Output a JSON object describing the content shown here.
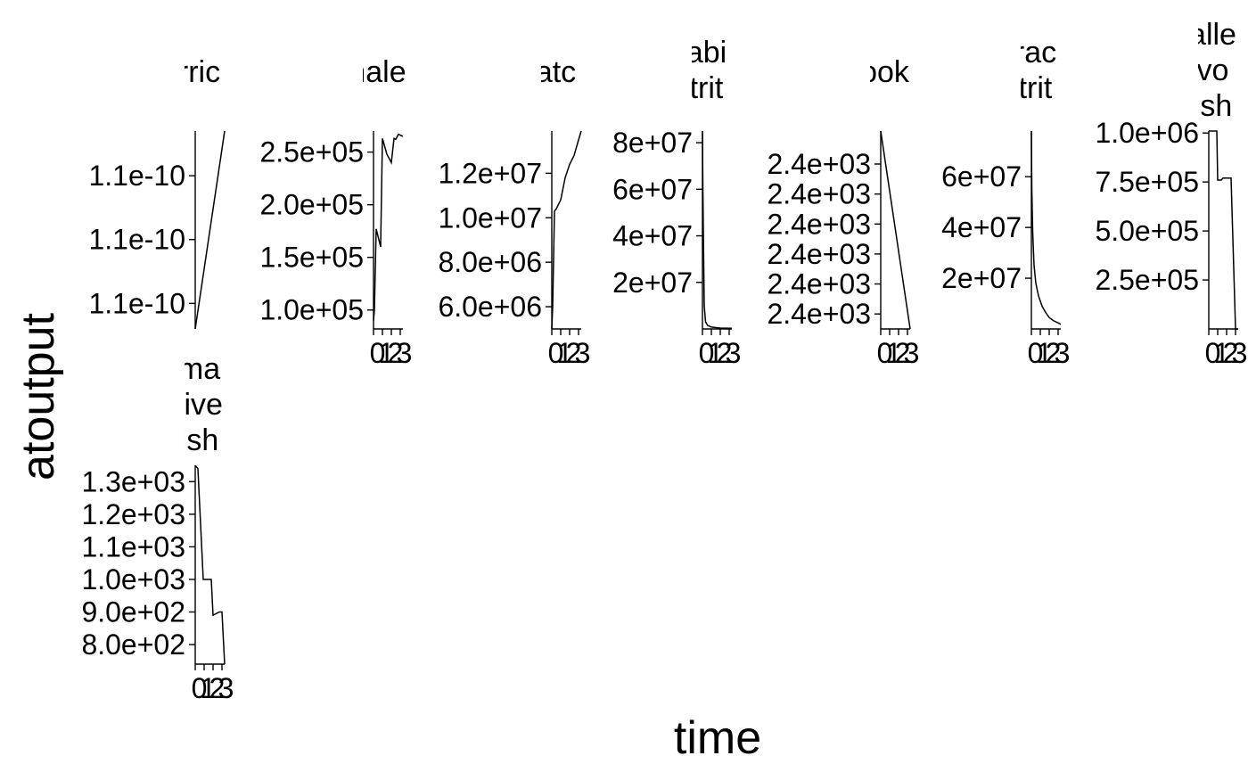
{
  "figure": {
    "xlabel": "time",
    "ylabel": "atoutput"
  },
  "chart_data": [
    {
      "type": "line",
      "title_lines": [
        "rric"
      ],
      "x": [
        0,
        3.3
      ],
      "y": [
        1.098e-10,
        1.1135e-10
      ],
      "ylim": [
        1.098e-10,
        1.1135e-10
      ],
      "yticks": [
        {
          "v": 1.1e-10,
          "label": "1.1e-10"
        },
        {
          "v": 1.105e-10,
          "label": "1.1e-10"
        },
        {
          "v": 1.11e-10,
          "label": "1.1e-10"
        }
      ],
      "xticks": []
    },
    {
      "type": "line",
      "title_lines": [
        "nale"
      ],
      "x": [
        0,
        0.1,
        0.3,
        0.8,
        1.0,
        1.5,
        2.0,
        2.3,
        2.5,
        2.8,
        3.0,
        3.3
      ],
      "y": [
        90000,
        100000,
        177000,
        160000,
        263000,
        248000,
        240000,
        263000,
        262000,
        267000,
        266000,
        265000
      ],
      "ylim": [
        82000,
        270000
      ],
      "yticks": [
        {
          "v": 100000,
          "label": "1.0e+05"
        },
        {
          "v": 150000,
          "label": "1.5e+05"
        },
        {
          "v": 200000,
          "label": "2.0e+05"
        },
        {
          "v": 250000,
          "label": "2.5e+05"
        }
      ],
      "xticks": [
        {
          "v": 0,
          "label": "0"
        },
        {
          "v": 1,
          "label": "1"
        },
        {
          "v": 2,
          "label": "2"
        },
        {
          "v": 3,
          "label": "3"
        }
      ]
    },
    {
      "type": "line",
      "title_lines": [
        "atc"
      ],
      "x": [
        0,
        0.1,
        0.3,
        0.5,
        1.0,
        1.5,
        2.0,
        2.5,
        3.0,
        3.3
      ],
      "y": [
        5000000,
        6000000,
        10300000,
        10400000,
        10800000,
        11800000,
        12400000,
        12800000,
        13500000,
        13900000
      ],
      "ylim": [
        5000000,
        13900000
      ],
      "yticks": [
        {
          "v": 6000000,
          "label": "6.0e+06"
        },
        {
          "v": 8000000,
          "label": "8.0e+06"
        },
        {
          "v": 10000000,
          "label": "1.0e+07"
        },
        {
          "v": 12000000,
          "label": "1.2e+07"
        }
      ],
      "xticks": [
        {
          "v": 0,
          "label": "0"
        },
        {
          "v": 1,
          "label": "1"
        },
        {
          "v": 2,
          "label": "2"
        },
        {
          "v": 3,
          "label": "3"
        }
      ]
    },
    {
      "type": "line",
      "title_lines": [
        "abi",
        "trit"
      ],
      "x": [
        0,
        0.05,
        0.1,
        0.2,
        0.35,
        0.6,
        1.0,
        2.0,
        3.3
      ],
      "y": [
        85000000,
        60000000,
        42000000,
        10000000,
        3000000,
        1500000,
        800000,
        400000,
        300000
      ],
      "ylim": [
        0,
        85000000
      ],
      "yticks": [
        {
          "v": 20000000,
          "label": "2e+07"
        },
        {
          "v": 40000000,
          "label": "4e+07"
        },
        {
          "v": 60000000,
          "label": "6e+07"
        },
        {
          "v": 80000000,
          "label": "8e+07"
        }
      ],
      "xticks": [
        {
          "v": 0,
          "label": "0"
        },
        {
          "v": 1,
          "label": "1"
        },
        {
          "v": 2,
          "label": "2"
        },
        {
          "v": 3,
          "label": "3"
        }
      ]
    },
    {
      "type": "line",
      "title_lines": [
        "ook"
      ],
      "x": [
        0,
        3.3
      ],
      "y": [
        2400.42,
        2399.1
      ],
      "ylim": [
        2399.1,
        2400.42
      ],
      "yticks": [
        {
          "v": 2399.2,
          "label": "2.4e+03"
        },
        {
          "v": 2399.4,
          "label": "2.4e+03"
        },
        {
          "v": 2399.6,
          "label": "2.4e+03"
        },
        {
          "v": 2399.8,
          "label": "2.4e+03"
        },
        {
          "v": 2400.0,
          "label": "2.4e+03"
        },
        {
          "v": 2400.2,
          "label": "2.4e+03"
        }
      ],
      "xticks": [
        {
          "v": 0,
          "label": "0"
        },
        {
          "v": 1,
          "label": "1"
        },
        {
          "v": 2,
          "label": "2"
        },
        {
          "v": 3,
          "label": "3"
        }
      ]
    },
    {
      "type": "line",
      "title_lines": [
        "rac",
        "trit"
      ],
      "x": [
        0,
        0.05,
        0.15,
        0.3,
        0.5,
        0.8,
        1.2,
        1.6,
        2.0,
        2.5,
        3.0,
        3.3
      ],
      "y": [
        78000000,
        55000000,
        38000000,
        25000000,
        18000000,
        13000000,
        9000000,
        6500000,
        4500000,
        3200000,
        2400000,
        1800000
      ],
      "ylim": [
        0,
        78000000
      ],
      "yticks": [
        {
          "v": 20000000,
          "label": "2e+07"
        },
        {
          "v": 40000000,
          "label": "4e+07"
        },
        {
          "v": 60000000,
          "label": "6e+07"
        }
      ],
      "xticks": [
        {
          "v": 0,
          "label": "0"
        },
        {
          "v": 1,
          "label": "1"
        },
        {
          "v": 2,
          "label": "2"
        },
        {
          "v": 3,
          "label": "3"
        }
      ]
    },
    {
      "type": "line",
      "title_lines": [
        "alle",
        "vo",
        "ish"
      ],
      "x": [
        0,
        0.1,
        0.9,
        1.0,
        1.4,
        1.6,
        2.0,
        2.5,
        3.0,
        3.3
      ],
      "y": [
        1010000,
        1010000,
        1010000,
        760000,
        760000,
        770000,
        770000,
        770000,
        0,
        0
      ],
      "ylim": [
        0,
        1010000
      ],
      "yticks": [
        {
          "v": 250000,
          "label": "2.5e+05"
        },
        {
          "v": 500000,
          "label": "5.0e+05"
        },
        {
          "v": 750000,
          "label": "7.5e+05"
        },
        {
          "v": 1000000,
          "label": "1.0e+06"
        }
      ],
      "xticks": [
        {
          "v": 0,
          "label": "0"
        },
        {
          "v": 1,
          "label": "1"
        },
        {
          "v": 2,
          "label": "2"
        },
        {
          "v": 3,
          "label": "3"
        }
      ]
    },
    {
      "type": "line",
      "title_lines": [
        "ma",
        "tive",
        "ish"
      ],
      "x": [
        0,
        0.3,
        0.9,
        1.0,
        1.8,
        2.0,
        2.7,
        3.0,
        3.3
      ],
      "y": [
        1350,
        1340,
        1000,
        1000,
        1000,
        890,
        900,
        900,
        740
      ],
      "ylim": [
        740,
        1350
      ],
      "yticks": [
        {
          "v": 800,
          "label": "8.0e+02"
        },
        {
          "v": 900,
          "label": "9.0e+02"
        },
        {
          "v": 1000,
          "label": "1.0e+03"
        },
        {
          "v": 1100,
          "label": "1.1e+03"
        },
        {
          "v": 1200,
          "label": "1.2e+03"
        },
        {
          "v": 1300,
          "label": "1.3e+03"
        }
      ],
      "xticks": [
        {
          "v": 0,
          "label": "0"
        },
        {
          "v": 1,
          "label": "1"
        },
        {
          "v": 2,
          "label": "2"
        },
        {
          "v": 3,
          "label": "3"
        }
      ]
    }
  ]
}
